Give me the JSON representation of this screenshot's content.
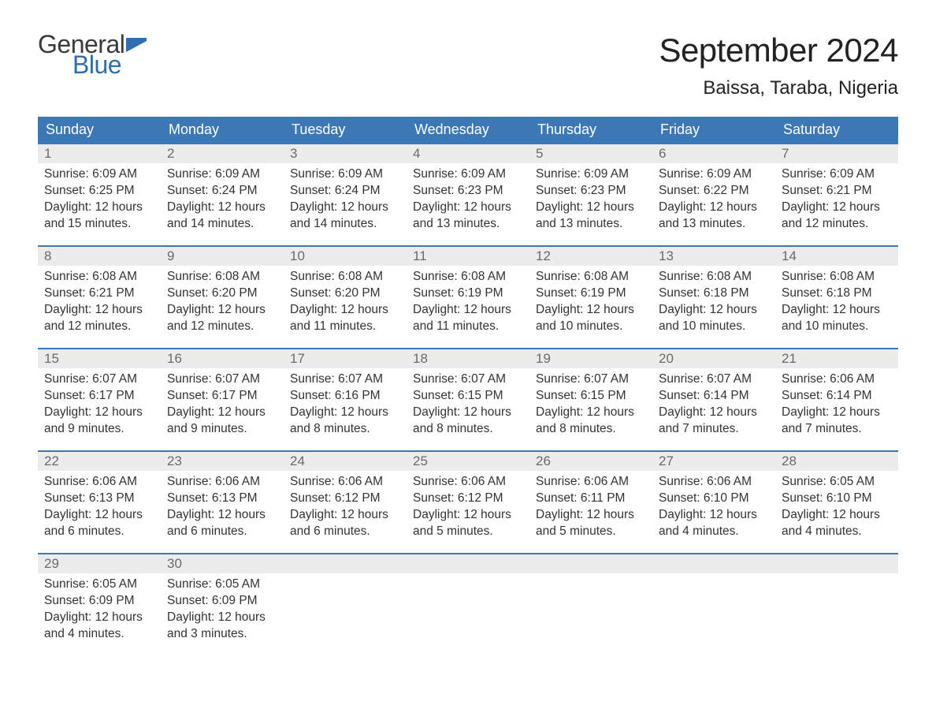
{
  "logo": {
    "word1": "General",
    "word2": "Blue",
    "flag_color": "#2f6fb0",
    "text_dark": "#3a3a3a"
  },
  "title": "September 2024",
  "location": "Baissa, Taraba, Nigeria",
  "colors": {
    "header_bg": "#3b78b5",
    "header_text": "#ffffff",
    "daynum_bg": "#ececec",
    "daynum_text": "#6a6a6a",
    "body_text": "#333333",
    "border_top": "#3b78b5",
    "page_bg": "#ffffff"
  },
  "typography": {
    "title_fontsize": 42,
    "location_fontsize": 24,
    "header_fontsize": 18,
    "daynum_fontsize": 17,
    "body_fontsize": 15.5
  },
  "weekdays": [
    "Sunday",
    "Monday",
    "Tuesday",
    "Wednesday",
    "Thursday",
    "Friday",
    "Saturday"
  ],
  "weeks": [
    [
      {
        "n": "1",
        "sunrise": "6:09 AM",
        "sunset": "6:25 PM",
        "daylight": "12 hours and 15 minutes."
      },
      {
        "n": "2",
        "sunrise": "6:09 AM",
        "sunset": "6:24 PM",
        "daylight": "12 hours and 14 minutes."
      },
      {
        "n": "3",
        "sunrise": "6:09 AM",
        "sunset": "6:24 PM",
        "daylight": "12 hours and 14 minutes."
      },
      {
        "n": "4",
        "sunrise": "6:09 AM",
        "sunset": "6:23 PM",
        "daylight": "12 hours and 13 minutes."
      },
      {
        "n": "5",
        "sunrise": "6:09 AM",
        "sunset": "6:23 PM",
        "daylight": "12 hours and 13 minutes."
      },
      {
        "n": "6",
        "sunrise": "6:09 AM",
        "sunset": "6:22 PM",
        "daylight": "12 hours and 13 minutes."
      },
      {
        "n": "7",
        "sunrise": "6:09 AM",
        "sunset": "6:21 PM",
        "daylight": "12 hours and 12 minutes."
      }
    ],
    [
      {
        "n": "8",
        "sunrise": "6:08 AM",
        "sunset": "6:21 PM",
        "daylight": "12 hours and 12 minutes."
      },
      {
        "n": "9",
        "sunrise": "6:08 AM",
        "sunset": "6:20 PM",
        "daylight": "12 hours and 12 minutes."
      },
      {
        "n": "10",
        "sunrise": "6:08 AM",
        "sunset": "6:20 PM",
        "daylight": "12 hours and 11 minutes."
      },
      {
        "n": "11",
        "sunrise": "6:08 AM",
        "sunset": "6:19 PM",
        "daylight": "12 hours and 11 minutes."
      },
      {
        "n": "12",
        "sunrise": "6:08 AM",
        "sunset": "6:19 PM",
        "daylight": "12 hours and 10 minutes."
      },
      {
        "n": "13",
        "sunrise": "6:08 AM",
        "sunset": "6:18 PM",
        "daylight": "12 hours and 10 minutes."
      },
      {
        "n": "14",
        "sunrise": "6:08 AM",
        "sunset": "6:18 PM",
        "daylight": "12 hours and 10 minutes."
      }
    ],
    [
      {
        "n": "15",
        "sunrise": "6:07 AM",
        "sunset": "6:17 PM",
        "daylight": "12 hours and 9 minutes."
      },
      {
        "n": "16",
        "sunrise": "6:07 AM",
        "sunset": "6:17 PM",
        "daylight": "12 hours and 9 minutes."
      },
      {
        "n": "17",
        "sunrise": "6:07 AM",
        "sunset": "6:16 PM",
        "daylight": "12 hours and 8 minutes."
      },
      {
        "n": "18",
        "sunrise": "6:07 AM",
        "sunset": "6:15 PM",
        "daylight": "12 hours and 8 minutes."
      },
      {
        "n": "19",
        "sunrise": "6:07 AM",
        "sunset": "6:15 PM",
        "daylight": "12 hours and 8 minutes."
      },
      {
        "n": "20",
        "sunrise": "6:07 AM",
        "sunset": "6:14 PM",
        "daylight": "12 hours and 7 minutes."
      },
      {
        "n": "21",
        "sunrise": "6:06 AM",
        "sunset": "6:14 PM",
        "daylight": "12 hours and 7 minutes."
      }
    ],
    [
      {
        "n": "22",
        "sunrise": "6:06 AM",
        "sunset": "6:13 PM",
        "daylight": "12 hours and 6 minutes."
      },
      {
        "n": "23",
        "sunrise": "6:06 AM",
        "sunset": "6:13 PM",
        "daylight": "12 hours and 6 minutes."
      },
      {
        "n": "24",
        "sunrise": "6:06 AM",
        "sunset": "6:12 PM",
        "daylight": "12 hours and 6 minutes."
      },
      {
        "n": "25",
        "sunrise": "6:06 AM",
        "sunset": "6:12 PM",
        "daylight": "12 hours and 5 minutes."
      },
      {
        "n": "26",
        "sunrise": "6:06 AM",
        "sunset": "6:11 PM",
        "daylight": "12 hours and 5 minutes."
      },
      {
        "n": "27",
        "sunrise": "6:06 AM",
        "sunset": "6:10 PM",
        "daylight": "12 hours and 4 minutes."
      },
      {
        "n": "28",
        "sunrise": "6:05 AM",
        "sunset": "6:10 PM",
        "daylight": "12 hours and 4 minutes."
      }
    ],
    [
      {
        "n": "29",
        "sunrise": "6:05 AM",
        "sunset": "6:09 PM",
        "daylight": "12 hours and 4 minutes."
      },
      {
        "n": "30",
        "sunrise": "6:05 AM",
        "sunset": "6:09 PM",
        "daylight": "12 hours and 3 minutes."
      },
      {
        "empty": true
      },
      {
        "empty": true
      },
      {
        "empty": true
      },
      {
        "empty": true
      },
      {
        "empty": true
      }
    ]
  ],
  "labels": {
    "sunrise": "Sunrise: ",
    "sunset": "Sunset: ",
    "daylight": "Daylight: "
  }
}
